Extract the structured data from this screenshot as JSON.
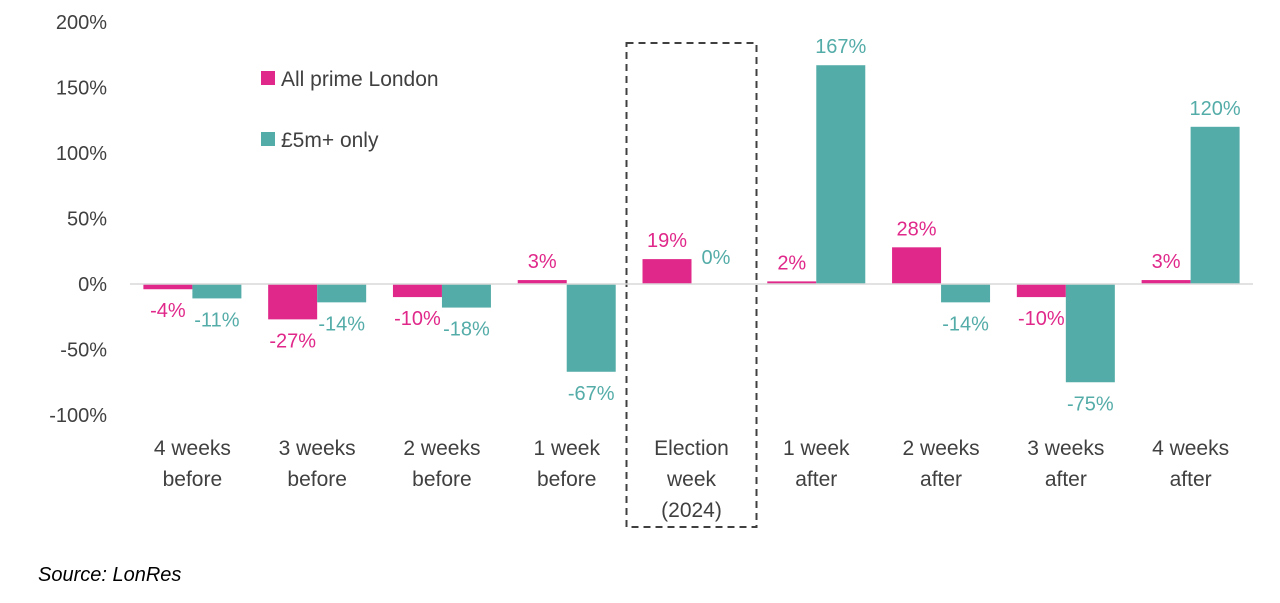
{
  "chart_data": {
    "type": "bar",
    "categories": [
      [
        "4 weeks",
        "before"
      ],
      [
        "3 weeks",
        "before"
      ],
      [
        "2 weeks",
        "before"
      ],
      [
        "1 week",
        "before"
      ],
      [
        "Election",
        "week",
        "(2024)"
      ],
      [
        "1 week",
        "after"
      ],
      [
        "2 weeks",
        "after"
      ],
      [
        "3 weeks",
        "after"
      ],
      [
        "4 weeks",
        "after"
      ]
    ],
    "series": [
      {
        "name": "All prime London",
        "color": "#e0288a",
        "values": [
          -4,
          -27,
          -10,
          3,
          19,
          2,
          28,
          -10,
          3
        ],
        "labels": [
          "-4%",
          "-27%",
          "-10%",
          "3%",
          "19%",
          "2%",
          "28%",
          "-10%",
          "3%"
        ]
      },
      {
        "name": "£5m+ only",
        "color": "#54aca8",
        "values": [
          -11,
          -14,
          -18,
          -67,
          0,
          167,
          -14,
          -75,
          120
        ],
        "labels": [
          "-11%",
          "-14%",
          "-18%",
          "-67%",
          "0%",
          "167%",
          "-14%",
          "-75%",
          "120%"
        ]
      }
    ],
    "yticks": [
      "200%",
      "150%",
      "100%",
      "50%",
      "0%",
      "-50%",
      "-100%"
    ],
    "ytick_values": [
      200,
      150,
      100,
      50,
      0,
      -50,
      -100
    ],
    "ylim": [
      -100,
      200
    ],
    "highlight_category": "Election week (2024)",
    "legend_position": "top-left",
    "grid": false
  },
  "source": "Source: LonRes"
}
